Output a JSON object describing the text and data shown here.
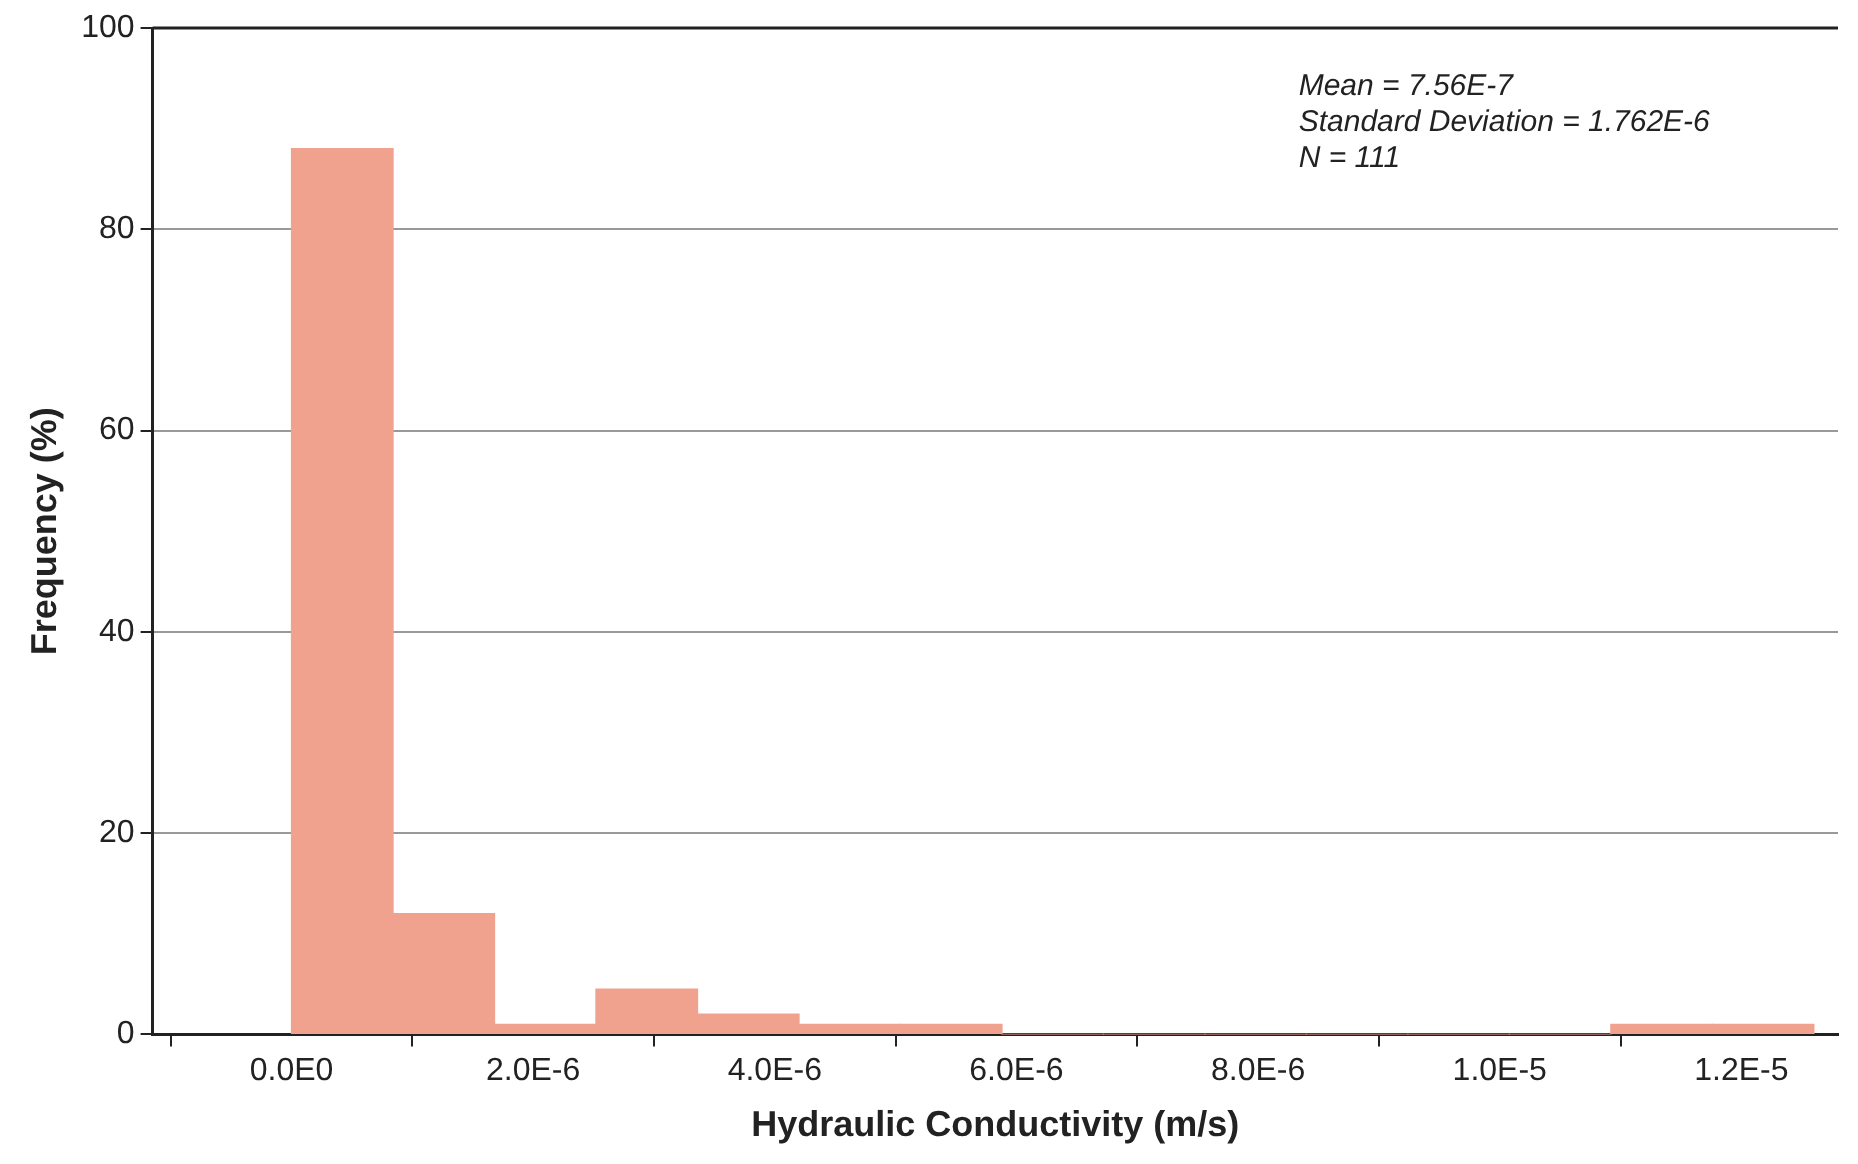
{
  "chart_data": {
    "type": "histogram",
    "xlabel": "Hydraulic Conductivity (m/s)",
    "ylabel": "Frequency (%)",
    "bins": [
      0,
      8.4e-07,
      1.68e-06,
      2.52e-06,
      3.36e-06,
      4.2e-06,
      5.04e-06,
      5.88e-06,
      6.72e-06,
      7.56e-06,
      8.4e-06,
      9.24e-06,
      1.008e-05,
      1.092e-05,
      1.176e-05,
      1.26e-05
    ],
    "values": [
      88,
      12,
      1,
      4.5,
      2,
      1,
      1,
      0,
      0,
      0,
      0,
      0,
      0,
      1,
      1
    ],
    "color": "#f0a28f",
    "xlim": [
      -1.15e-06,
      1.28e-05
    ],
    "xticks": [
      {
        "value": 0,
        "label": "0.0E0"
      },
      {
        "value": 2e-06,
        "label": "2.0E-6"
      },
      {
        "value": 4e-06,
        "label": "4.0E-6"
      },
      {
        "value": 6e-06,
        "label": "6.0E-6"
      },
      {
        "value": 8e-06,
        "label": "8.0E-6"
      },
      {
        "value": 1e-05,
        "label": "1.0E-5"
      },
      {
        "value": 1.2e-05,
        "label": "1.2E-5"
      }
    ],
    "ylim": [
      0,
      100
    ],
    "yticks": [
      0,
      20,
      40,
      60,
      80,
      100
    ],
    "grid": "y",
    "annotations": [
      "Mean = 7.56E-7",
      "Standard Deviation = 1.762E-6",
      "N = 111"
    ]
  }
}
